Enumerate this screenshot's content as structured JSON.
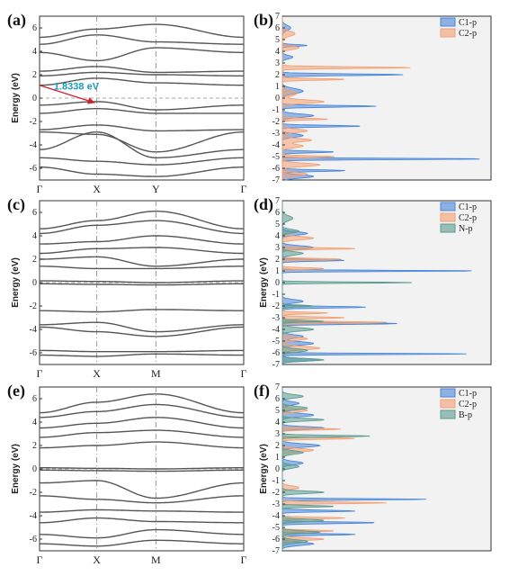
{
  "chart_data": [
    {
      "type": "line",
      "panel": "(a)",
      "ylabel": "Energy (eV)",
      "ylim": [
        -7,
        7
      ],
      "yticks": [
        -6,
        -4,
        -2,
        0,
        2,
        4,
        6
      ],
      "kpoints": [
        "Γ",
        "X",
        "Y",
        "Γ"
      ],
      "annotation": "1.8338 eV",
      "bands": [
        [
          5.2,
          5.9,
          6.3,
          5.2
        ],
        [
          4.6,
          5.4,
          4.8,
          4.6
        ],
        [
          3.9,
          3.2,
          4.3,
          3.9
        ],
        [
          2.3,
          2.7,
          2.2,
          2.3
        ],
        [
          1.9,
          2.2,
          2.0,
          1.9
        ],
        [
          1.1,
          1.7,
          1.3,
          1.1
        ],
        [
          -0.6,
          -0.3,
          -1.0,
          -0.6
        ],
        [
          -1.3,
          -0.9,
          -1.3,
          -1.3
        ],
        [
          -2.7,
          -2.3,
          -2.8,
          -2.7
        ],
        [
          -2.9,
          -3.1,
          -4.6,
          -2.9
        ],
        [
          -4.4,
          -2.9,
          -5.1,
          -4.4
        ],
        [
          -5.1,
          -5.4,
          -5.7,
          -5.1
        ],
        [
          -5.9,
          -6.5,
          -6.7,
          -5.9
        ]
      ]
    },
    {
      "type": "area",
      "panel": "(b)",
      "ylim": [
        -7,
        7
      ],
      "yticks": [
        -7,
        -6,
        -5,
        -4,
        -3,
        -2,
        -1,
        0,
        1,
        2,
        3,
        4,
        5,
        6,
        7
      ],
      "legend": [
        "C1-p",
        "C2-p"
      ],
      "colors": [
        "#4a86d8",
        "#f2a072"
      ],
      "series": [
        {
          "name": "C1-p",
          "peaks": [
            [
              6.0,
              0.04,
              0.3
            ],
            [
              4.5,
              0.12,
              0.1
            ],
            [
              3.5,
              0.05,
              0.2
            ],
            [
              2.0,
              0.58,
              0.1
            ],
            [
              0.6,
              0.1,
              0.3
            ],
            [
              -0.7,
              0.45,
              0.1
            ],
            [
              -1.5,
              0.15,
              0.2
            ],
            [
              -2.4,
              0.38,
              0.1
            ],
            [
              -3.2,
              0.1,
              0.2
            ],
            [
              -4.6,
              0.25,
              0.1
            ],
            [
              -5.2,
              0.98,
              0.08
            ],
            [
              -6.2,
              0.3,
              0.1
            ],
            [
              -6.7,
              0.15,
              0.2
            ]
          ]
        },
        {
          "name": "C2-p",
          "peaks": [
            [
              5.5,
              0.06,
              0.3
            ],
            [
              4.3,
              0.08,
              0.2
            ],
            [
              2.6,
              0.62,
              0.1
            ],
            [
              1.6,
              0.3,
              0.1
            ],
            [
              0.4,
              0.07,
              0.3
            ],
            [
              -0.3,
              0.2,
              0.2
            ],
            [
              -1.8,
              0.22,
              0.1
            ],
            [
              -2.8,
              0.12,
              0.2
            ],
            [
              -3.6,
              0.14,
              0.2
            ],
            [
              -4.1,
              0.1,
              0.2
            ],
            [
              -5.0,
              0.25,
              0.1
            ],
            [
              -5.7,
              0.18,
              0.2
            ],
            [
              -6.5,
              0.12,
              0.2
            ]
          ]
        }
      ]
    },
    {
      "type": "line",
      "panel": "(c)",
      "ylabel": "Energy (eV)",
      "ylim": [
        -7,
        7
      ],
      "yticks": [
        -6,
        -4,
        -2,
        0,
        2,
        4,
        6
      ],
      "kpoints": [
        "Γ",
        "X",
        "M",
        "Γ"
      ],
      "bands": [
        [
          4.6,
          5.3,
          6.1,
          4.6
        ],
        [
          4.2,
          4.9,
          5.3,
          4.2
        ],
        [
          3.3,
          3.5,
          4.0,
          3.3
        ],
        [
          2.5,
          2.9,
          3.0,
          2.5
        ],
        [
          2.0,
          2.2,
          1.4,
          2.0
        ],
        [
          1.4,
          1.2,
          1.2,
          1.4
        ],
        [
          0.15,
          0.1,
          0.0,
          0.15
        ],
        [
          -0.1,
          -0.15,
          -0.2,
          -0.1
        ],
        [
          -2.4,
          -2.5,
          -2.3,
          -2.4
        ],
        [
          -3.6,
          -3.4,
          -4.2,
          -3.6
        ],
        [
          -3.8,
          -4.2,
          -4.6,
          -3.8
        ],
        [
          -5.8,
          -5.9,
          -5.9,
          -5.8
        ],
        [
          -6.2,
          -6.3,
          -6.1,
          -6.2
        ]
      ]
    },
    {
      "type": "area",
      "panel": "(d)",
      "ylim": [
        -7,
        7
      ],
      "yticks": [
        -7,
        -6,
        -5,
        -4,
        -3,
        -2,
        -1,
        0,
        1,
        2,
        3,
        4,
        5,
        6,
        7
      ],
      "legend": [
        "C1-p",
        "C2-p",
        "N-p"
      ],
      "colors": [
        "#4a86d8",
        "#f2a072",
        "#5b9b8f"
      ],
      "series": [
        {
          "name": "C1-p",
          "peaks": [
            [
              4.2,
              0.12,
              0.2
            ],
            [
              3.0,
              0.15,
              0.2
            ],
            [
              1.9,
              0.3,
              0.1
            ],
            [
              1.0,
              0.95,
              0.07
            ],
            [
              -1.6,
              0.1,
              0.2
            ],
            [
              -2.1,
              0.4,
              0.1
            ],
            [
              -3.5,
              0.55,
              0.1
            ],
            [
              -4.6,
              0.1,
              0.2
            ],
            [
              -5.2,
              0.15,
              0.2
            ],
            [
              -6.1,
              0.9,
              0.07
            ],
            [
              -6.6,
              0.18,
              0.15
            ]
          ]
        },
        {
          "name": "C2-p",
          "peaks": [
            [
              3.8,
              0.15,
              0.2
            ],
            [
              2.9,
              0.35,
              0.1
            ],
            [
              2.0,
              0.28,
              0.1
            ],
            [
              1.2,
              0.2,
              0.1
            ],
            [
              -2.6,
              0.22,
              0.1
            ],
            [
              -3.0,
              0.3,
              0.1
            ],
            [
              -3.4,
              0.5,
              0.1
            ],
            [
              -4.8,
              0.12,
              0.2
            ],
            [
              -5.6,
              0.18,
              0.2
            ]
          ]
        },
        {
          "name": "N-p",
          "peaks": [
            [
              5.5,
              0.05,
              0.3
            ],
            [
              4.4,
              0.08,
              0.2
            ],
            [
              2.5,
              0.1,
              0.2
            ],
            [
              0.0,
              0.62,
              0.07
            ],
            [
              -2.0,
              0.15,
              0.1
            ],
            [
              -3.3,
              0.2,
              0.1
            ],
            [
              -4.0,
              0.15,
              0.2
            ],
            [
              -5.8,
              0.12,
              0.2
            ],
            [
              -6.6,
              0.2,
              0.15
            ]
          ]
        }
      ]
    },
    {
      "type": "line",
      "panel": "(e)",
      "ylabel": "Energy (eV)",
      "ylim": [
        -7,
        7
      ],
      "yticks": [
        -6,
        -4,
        -2,
        0,
        2,
        4,
        6
      ],
      "kpoints": [
        "Γ",
        "X",
        "M",
        "Γ"
      ],
      "bands": [
        [
          4.8,
          5.7,
          6.4,
          4.8
        ],
        [
          4.4,
          4.9,
          5.5,
          4.4
        ],
        [
          3.5,
          3.9,
          4.4,
          3.5
        ],
        [
          2.7,
          3.1,
          3.3,
          2.7
        ],
        [
          1.8,
          2.0,
          2.3,
          1.8
        ],
        [
          0.1,
          0.05,
          0.0,
          0.1
        ],
        [
          -0.1,
          -0.15,
          -0.2,
          -0.1
        ],
        [
          -1.2,
          -1.0,
          -2.5,
          -1.2
        ],
        [
          -2.3,
          -2.6,
          -2.9,
          -2.3
        ],
        [
          -3.7,
          -3.5,
          -3.6,
          -3.7
        ],
        [
          -4.6,
          -4.2,
          -4.5,
          -4.6
        ],
        [
          -5.6,
          -5.9,
          -5.2,
          -5.6
        ],
        [
          -6.4,
          -6.6,
          -6.1,
          -6.4
        ]
      ]
    },
    {
      "type": "area",
      "panel": "(f)",
      "ylim": [
        -7,
        7
      ],
      "yticks": [
        -7,
        -6,
        -5,
        -4,
        -3,
        -2,
        -1,
        0,
        1,
        2,
        3,
        4,
        5,
        6,
        7
      ],
      "legend": [
        "C1-p",
        "C2-p",
        "B-p"
      ],
      "colors": [
        "#4a86d8",
        "#f2a072",
        "#5b9b8f"
      ],
      "series": [
        {
          "name": "C1-p",
          "peaks": [
            [
              5.6,
              0.08,
              0.2
            ],
            [
              4.6,
              0.15,
              0.2
            ],
            [
              3.5,
              0.2,
              0.15
            ],
            [
              2.0,
              0.18,
              0.2
            ],
            [
              0.5,
              0.1,
              0.2
            ],
            [
              -2.6,
              0.7,
              0.08
            ],
            [
              -3.6,
              0.35,
              0.1
            ],
            [
              -4.6,
              0.45,
              0.1
            ],
            [
              -5.6,
              0.35,
              0.1
            ],
            [
              -6.4,
              0.15,
              0.2
            ]
          ]
        },
        {
          "name": "C2-p",
          "peaks": [
            [
              5.0,
              0.12,
              0.2
            ],
            [
              3.4,
              0.28,
              0.1
            ],
            [
              2.6,
              0.35,
              0.1
            ],
            [
              1.6,
              0.15,
              0.2
            ],
            [
              -1.6,
              0.08,
              0.2
            ],
            [
              -2.9,
              0.5,
              0.1
            ],
            [
              -4.2,
              0.3,
              0.1
            ],
            [
              -5.3,
              0.25,
              0.1
            ],
            [
              -6.0,
              0.2,
              0.15
            ]
          ]
        },
        {
          "name": "B-p",
          "peaks": [
            [
              6.2,
              0.1,
              0.2
            ],
            [
              5.2,
              0.12,
              0.2
            ],
            [
              4.2,
              0.2,
              0.15
            ],
            [
              2.8,
              0.42,
              0.1
            ],
            [
              1.4,
              0.1,
              0.2
            ],
            [
              0.2,
              0.08,
              0.2
            ],
            [
              -2.0,
              0.2,
              0.15
            ],
            [
              -3.2,
              0.25,
              0.1
            ],
            [
              -4.4,
              0.2,
              0.15
            ],
            [
              -5.4,
              0.18,
              0.15
            ],
            [
              -6.2,
              0.12,
              0.2
            ]
          ]
        }
      ]
    }
  ]
}
